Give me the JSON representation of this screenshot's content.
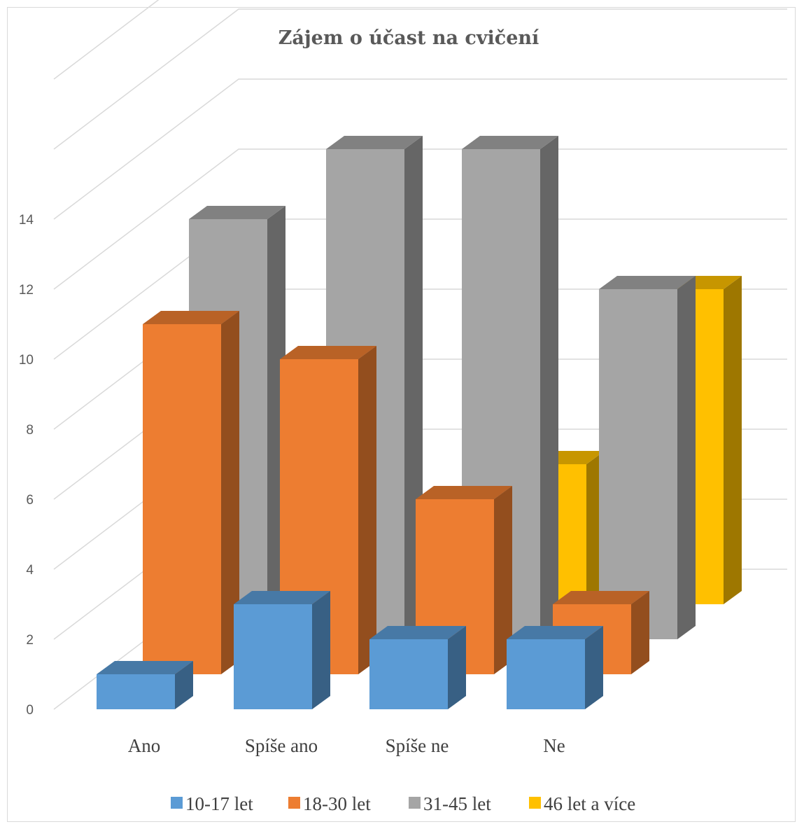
{
  "chart_data": {
    "type": "bar",
    "variant": "3d-column",
    "title": "Zájem o účast na cvičení",
    "categories": [
      "Ano",
      "Spíše ano",
      "Spíše ne",
      "Ne"
    ],
    "series": [
      {
        "name": "10-17 let",
        "values": [
          1,
          3,
          2,
          2
        ],
        "color": "#5b9bd5"
      },
      {
        "name": "18-30 let",
        "values": [
          10,
          9,
          5,
          2
        ],
        "color": "#ed7d31"
      },
      {
        "name": "31-45 let",
        "values": [
          12,
          14,
          14,
          10
        ],
        "color": "#a5a5a5"
      },
      {
        "name": "46 let a více",
        "values": [
          null,
          null,
          4,
          9
        ],
        "color": "#ffc000"
      }
    ],
    "y_ticks": [
      "0",
      "2",
      "4",
      "6",
      "8",
      "10",
      "12",
      "14"
    ],
    "ylim": [
      0,
      14
    ],
    "xlabel": "",
    "ylabel": "",
    "grid": true,
    "legend_position": "bottom"
  }
}
